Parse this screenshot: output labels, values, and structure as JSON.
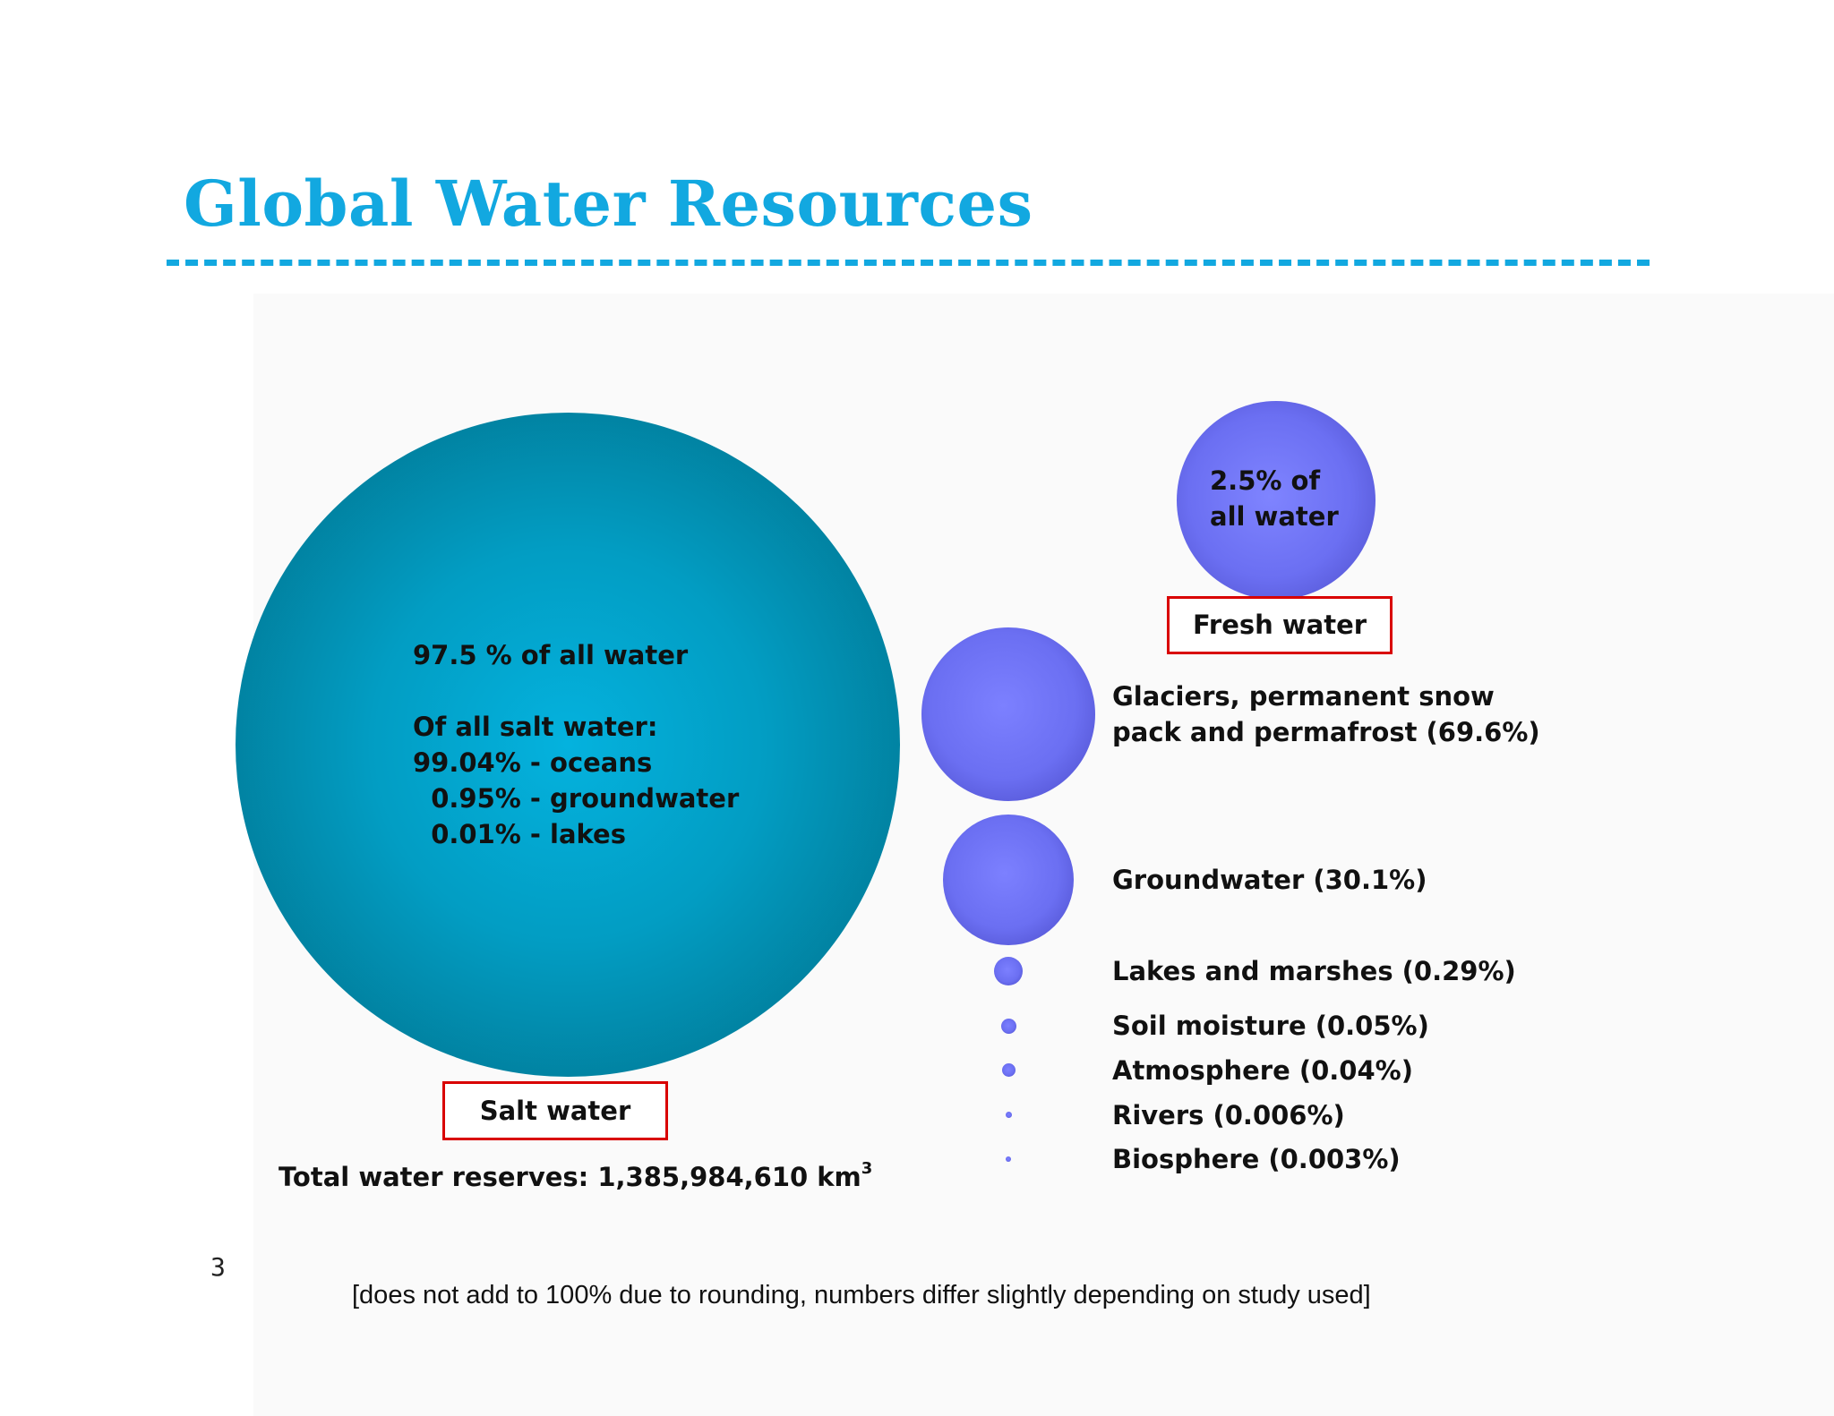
{
  "title": "Global Water Resources",
  "salt": {
    "share_text": "97.5 % of all water",
    "breakdown_heading": "Of all salt water:",
    "breakdown": [
      "99.04% - oceans",
      "  0.95% - groundwater",
      "  0.01% - lakes"
    ],
    "label": "Salt water",
    "share_percent": 97.5
  },
  "fresh": {
    "share_line1": "2.5% of",
    "share_line2": "all water",
    "label": "Fresh water",
    "share_percent": 2.5,
    "components": [
      {
        "label_line1": "Glaciers, permanent snow",
        "label_line2": "pack and permafrost (69.6%)",
        "percent": 69.6
      },
      {
        "label": "Groundwater (30.1%)",
        "percent": 30.1
      },
      {
        "label": "Lakes and marshes (0.29%)",
        "percent": 0.29
      },
      {
        "label": "Soil moisture (0.05%)",
        "percent": 0.05
      },
      {
        "label": "Atmosphere (0.04%)",
        "percent": 0.04
      },
      {
        "label": "Rivers (0.006%)",
        "percent": 0.006
      },
      {
        "label": "Biosphere (0.003%)",
        "percent": 0.003
      }
    ]
  },
  "total": {
    "text": "Total water reserves: 1,385,984,610 km",
    "unit_superscript": "3"
  },
  "page_number": "3",
  "footnote": "[does not add to 100% due to rounding, numbers differ slightly depending on study used]",
  "colors": {
    "title": "#12a8e0",
    "salt_water": "#029dc3",
    "fresh_water": "#6b6ff2",
    "label_border": "#d90000"
  }
}
